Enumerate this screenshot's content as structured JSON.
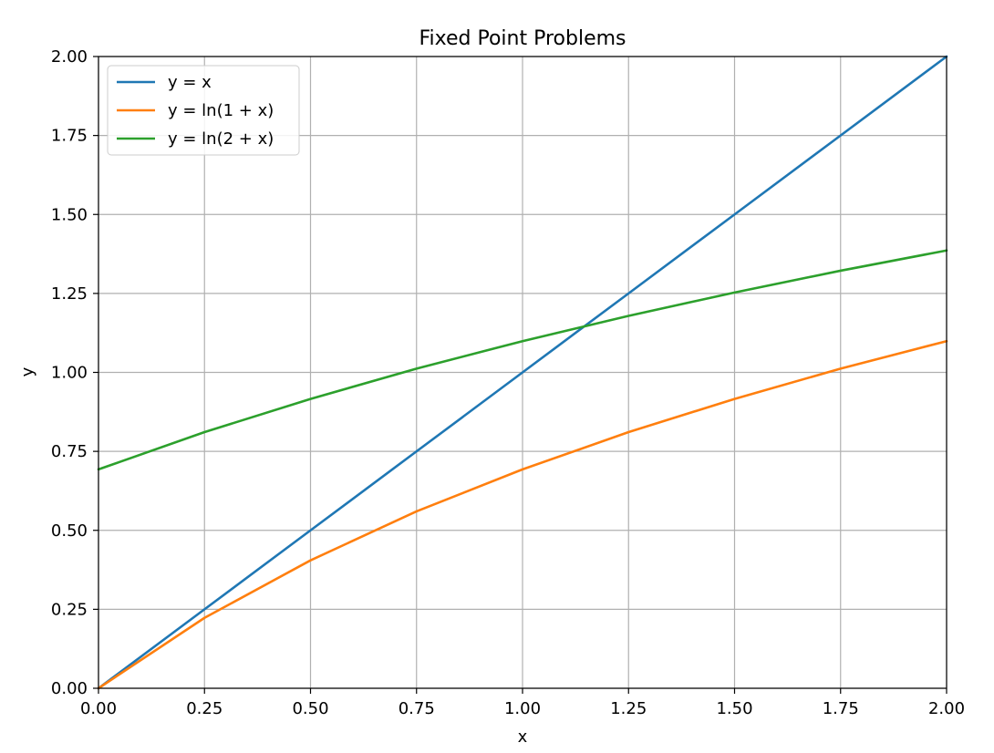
{
  "chart_data": {
    "type": "line",
    "title": "Fixed Point Problems",
    "xlabel": "x",
    "ylabel": "y",
    "xlim": [
      0,
      2
    ],
    "ylim": [
      0,
      2
    ],
    "grid": true,
    "legend_position": "top-left",
    "x_ticks": [
      "0.00",
      "0.25",
      "0.50",
      "0.75",
      "1.00",
      "1.25",
      "1.50",
      "1.75",
      "2.00"
    ],
    "y_ticks": [
      "0.00",
      "0.25",
      "0.50",
      "0.75",
      "1.00",
      "1.25",
      "1.50",
      "1.75",
      "2.00"
    ],
    "x": [
      0,
      0.25,
      0.5,
      0.75,
      1.0,
      1.25,
      1.5,
      1.75,
      2.0
    ],
    "series": [
      {
        "name": "y = x",
        "color": "#1f77b4",
        "values": [
          0.0,
          0.25,
          0.5,
          0.75,
          1.0,
          1.25,
          1.5,
          1.75,
          2.0
        ]
      },
      {
        "name": "y = ln(1 + x)",
        "color": "#ff7f0e",
        "values": [
          0.0,
          0.223,
          0.405,
          0.56,
          0.693,
          0.811,
          0.916,
          1.012,
          1.099
        ]
      },
      {
        "name": "y = ln(2 + x)",
        "color": "#2ca02c",
        "values": [
          0.693,
          0.811,
          0.916,
          1.012,
          1.099,
          1.179,
          1.253,
          1.322,
          1.386
        ]
      }
    ]
  }
}
